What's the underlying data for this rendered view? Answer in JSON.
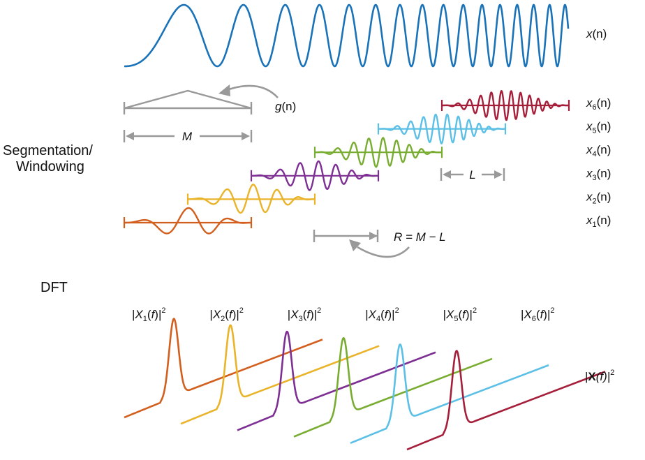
{
  "signal_label": {
    "base": "x",
    "arg": "(n)"
  },
  "window_label": {
    "base": "g",
    "arg": "(n)"
  },
  "length_label": "M",
  "overlap_label": "L",
  "hop_label": "R = M − L",
  "section_titles": {
    "windowing_line1": "Segmentation/",
    "windowing_line2": "Windowing",
    "dft": "DFT"
  },
  "segments": [
    {
      "sub": "1",
      "color": "#d35f1f"
    },
    {
      "sub": "2",
      "color": "#e9b42a"
    },
    {
      "sub": "3",
      "color": "#7d2f93"
    },
    {
      "sub": "4",
      "color": "#79ad32"
    },
    {
      "sub": "5",
      "color": "#5bbfe6"
    },
    {
      "sub": "6",
      "color": "#a51f3b"
    }
  ],
  "segment_label": {
    "base": "x",
    "arg": "(n)"
  },
  "spectrum_label": {
    "open": "|X",
    "arg": "(f)|",
    "sup": "2"
  },
  "matrix_label": {
    "open": "|",
    "bold": "X",
    "arg": "(f)|",
    "sup": "2"
  },
  "colors": {
    "signal": "#1a73b8",
    "window": "#999999",
    "text": "#111111"
  }
}
